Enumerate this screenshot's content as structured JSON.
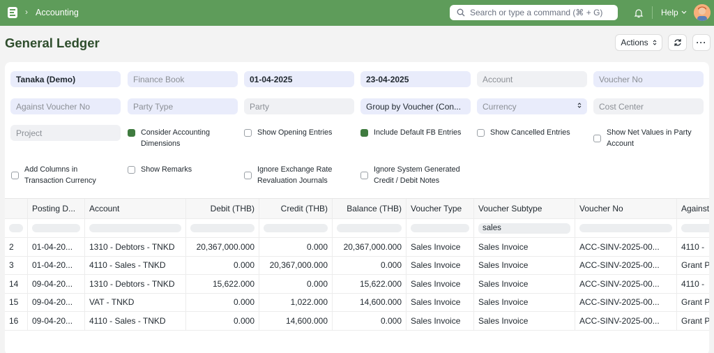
{
  "navbar": {
    "breadcrumb": "Accounting",
    "search_placeholder": "Search or type a command (⌘ + G)",
    "help_label": "Help"
  },
  "page": {
    "title": "General Ledger",
    "actions_label": "Actions",
    "more_label": "···"
  },
  "filters": {
    "company": "Tanaka (Demo)",
    "finance_book": "Finance Book",
    "from_date": "01-04-2025",
    "to_date": "23-04-2025",
    "account": "Account",
    "voucher_no": "Voucher No",
    "against_voucher_no": "Against Voucher No",
    "party_type": "Party Type",
    "party": "Party",
    "group_by": "Group by Voucher (Con...",
    "currency": "Currency",
    "cost_center": "Cost Center",
    "project": "Project"
  },
  "checkboxes": [
    {
      "label1": "Consider Accounting",
      "label2": "Dimensions",
      "checked": true
    },
    {
      "label1": "Show Opening Entries",
      "label2": "",
      "checked": false
    },
    {
      "label1": "Include Default FB Entries",
      "label2": "",
      "checked": true
    },
    {
      "label1": "Show Cancelled Entries",
      "label2": "",
      "checked": false
    },
    {
      "label1": "Show Net Values in Party",
      "label2": "Account",
      "checked": false
    },
    {
      "label1": "Add Columns in",
      "label2": "Transaction Currency",
      "checked": false
    },
    {
      "label1": "Show Remarks",
      "label2": "",
      "checked": false
    },
    {
      "label1": "Ignore Exchange Rate",
      "label2": "Revaluation Journals",
      "checked": false
    },
    {
      "label1": "Ignore System Generated",
      "label2": "Credit / Debit Notes",
      "checked": false
    }
  ],
  "table": {
    "headers": [
      "",
      "Posting D...",
      "Account",
      "Debit (THB)",
      "Credit (THB)",
      "Balance (THB)",
      "Voucher Type",
      "Voucher Subtype",
      "Voucher No",
      "Against"
    ],
    "voucher_subtype_filter": "sales",
    "rows": [
      [
        "2",
        "01-04-20...",
        "1310 - Debtors - TNKD",
        "20,367,000.000",
        "0.000",
        "20,367,000.000",
        "Sales Invoice",
        "Sales Invoice",
        "ACC-SINV-2025-00...",
        "4110 -"
      ],
      [
        "3",
        "01-04-20...",
        "4110 - Sales - TNKD",
        "0.000",
        "20,367,000.000",
        "0.000",
        "Sales Invoice",
        "Sales Invoice",
        "ACC-SINV-2025-00...",
        "Grant P"
      ],
      [
        "14",
        "09-04-20...",
        "1310 - Debtors - TNKD",
        "15,622.000",
        "0.000",
        "15,622.000",
        "Sales Invoice",
        "Sales Invoice",
        "ACC-SINV-2025-00...",
        "4110 -"
      ],
      [
        "15",
        "09-04-20...",
        "VAT - TNKD",
        "0.000",
        "1,022.000",
        "14,600.000",
        "Sales Invoice",
        "Sales Invoice",
        "ACC-SINV-2025-00...",
        "Grant P"
      ],
      [
        "16",
        "09-04-20...",
        "4110 - Sales - TNKD",
        "0.000",
        "14,600.000",
        "0.000",
        "Sales Invoice",
        "Sales Invoice",
        "ACC-SINV-2025-00...",
        "Grant P"
      ]
    ]
  },
  "colors": {
    "navbar": "#5e9c5a",
    "title": "#2e4d2c",
    "checkbox_on": "#3f7b3f"
  }
}
